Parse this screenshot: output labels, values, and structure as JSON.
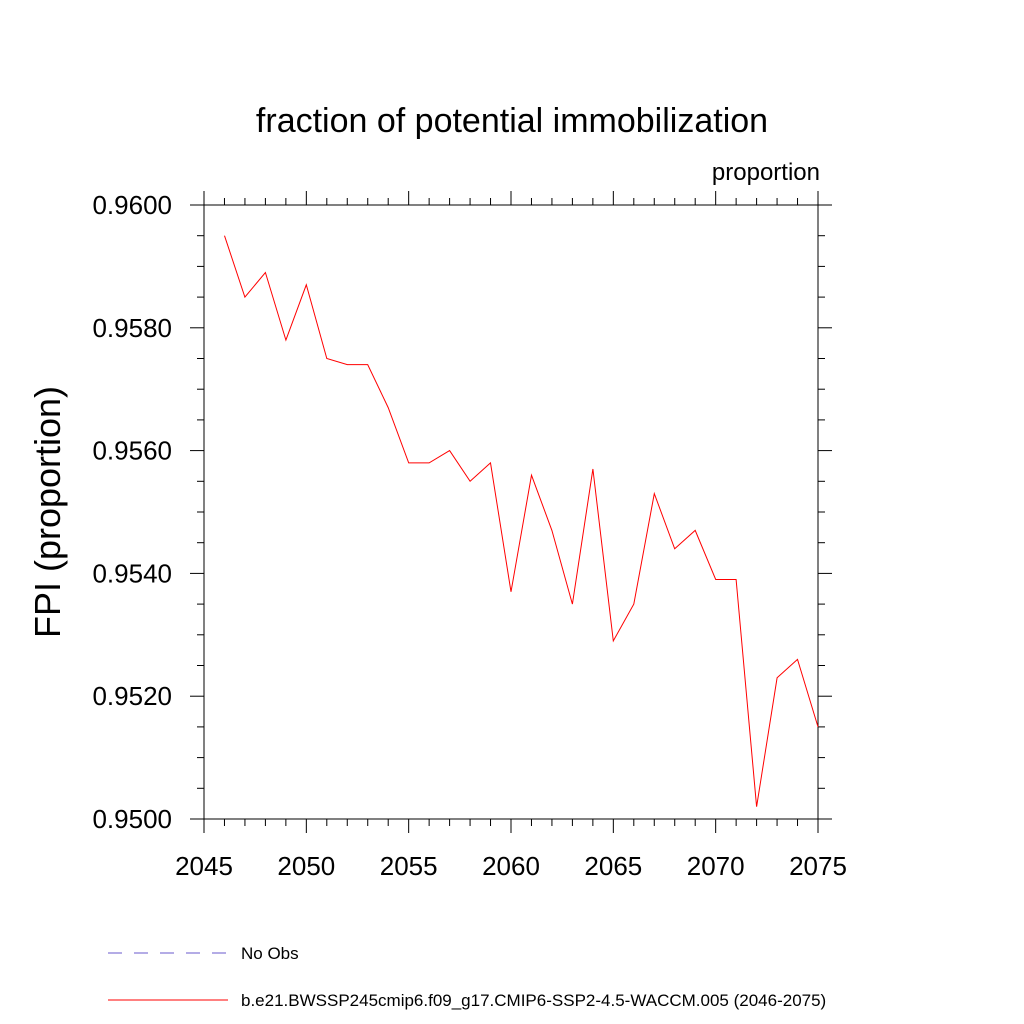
{
  "chart_data": {
    "type": "line",
    "title": "fraction of potential immobilization",
    "units_label": "proportion",
    "ylabel": "FPI  (proportion)",
    "xlabel": "",
    "xlim": [
      2045,
      2075
    ],
    "ylim": [
      0.95,
      0.96
    ],
    "x_ticks": [
      2045,
      2050,
      2055,
      2060,
      2065,
      2070,
      2075
    ],
    "x_tick_labels": [
      "2045",
      "2050",
      "2055",
      "2060",
      "2065",
      "2070",
      "2075"
    ],
    "y_ticks": [
      0.95,
      0.952,
      0.954,
      0.956,
      0.958,
      0.96
    ],
    "y_tick_labels": [
      "0.9500",
      "0.9520",
      "0.9540",
      "0.9560",
      "0.9580",
      "0.9600"
    ],
    "grid": false,
    "legend_position": "bottom",
    "series": [
      {
        "name": "b.e21.BWSSP245cmip6.f09_g17.CMIP6-SSP2-4.5-WACCM.005 (2046-2075)",
        "color": "#ff0000",
        "style": "solid",
        "x": [
          2046,
          2047,
          2048,
          2049,
          2050,
          2051,
          2052,
          2053,
          2054,
          2055,
          2056,
          2057,
          2058,
          2059,
          2060,
          2061,
          2062,
          2063,
          2064,
          2065,
          2066,
          2067,
          2068,
          2069,
          2070,
          2071,
          2072,
          2073,
          2074,
          2075
        ],
        "values": [
          0.9595,
          0.9585,
          0.9589,
          0.9578,
          0.9587,
          0.9575,
          0.9574,
          0.9574,
          0.9567,
          0.9558,
          0.9558,
          0.956,
          0.9555,
          0.9558,
          0.9537,
          0.9556,
          0.9547,
          0.9535,
          0.9557,
          0.9529,
          0.9535,
          0.9553,
          0.9544,
          0.9547,
          0.9539,
          0.9539,
          0.9502,
          0.9523,
          0.9526,
          0.9515
        ]
      }
    ],
    "legend": [
      {
        "label": "No Obs",
        "color": "#6a5acd",
        "style": "dashed"
      },
      {
        "label": "b.e21.BWSSP245cmip6.f09_g17.CMIP6-SSP2-4.5-WACCM.005 (2046-2075)",
        "color": "#ff0000",
        "style": "solid"
      }
    ]
  }
}
